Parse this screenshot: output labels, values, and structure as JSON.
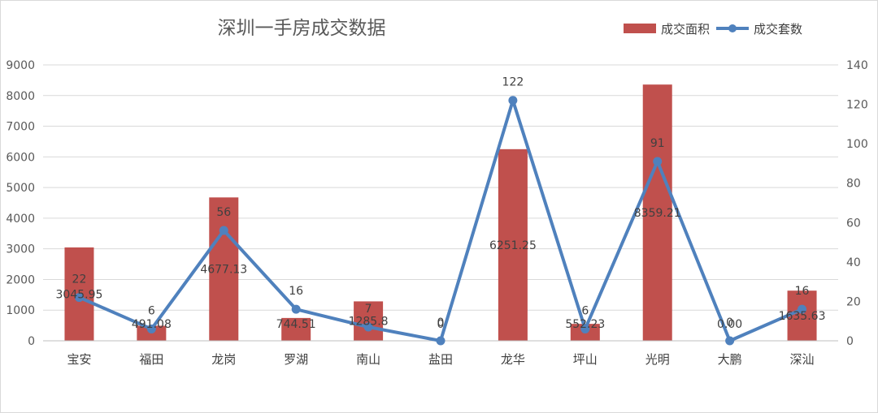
{
  "chart_data": {
    "type": "bar",
    "title": "深圳一手房成交数据",
    "categories": [
      "宝安",
      "福田",
      "龙岗",
      "罗湖",
      "南山",
      "盐田",
      "龙华",
      "坪山",
      "光明",
      "大鹏",
      "深汕"
    ],
    "series": [
      {
        "name": "成交面积",
        "type": "bar",
        "axis": "left",
        "color": "#c0504d",
        "values": [
          3045.95,
          491.08,
          4677.13,
          744.51,
          1285.8,
          0,
          6251.25,
          552.23,
          8359.21,
          0,
          1635.63
        ],
        "labels": [
          "3045.95",
          "491.08",
          "4677.13",
          "744.51",
          "1285.8",
          "0",
          "6251.25",
          "552.23",
          "8359.21",
          "0.00",
          "1635.63"
        ]
      },
      {
        "name": "成交套数",
        "type": "line",
        "axis": "right",
        "color": "#4f81bd",
        "values": [
          22,
          6,
          56,
          16,
          7,
          0,
          122,
          6,
          91,
          0,
          16
        ],
        "labels": [
          "22",
          "6",
          "56",
          "16",
          "7",
          "0",
          "122",
          "6",
          "91",
          "0",
          "16"
        ]
      }
    ],
    "y_left": {
      "min": 0,
      "max": 9000,
      "step": 1000,
      "ticks": [
        "0",
        "1000",
        "2000",
        "3000",
        "4000",
        "5000",
        "6000",
        "7000",
        "8000",
        "9000"
      ]
    },
    "y_right": {
      "min": 0,
      "max": 140,
      "step": 20,
      "ticks": [
        "0",
        "20",
        "40",
        "60",
        "80",
        "100",
        "120",
        "140"
      ]
    },
    "grid": true,
    "legend_position": "top-right"
  }
}
